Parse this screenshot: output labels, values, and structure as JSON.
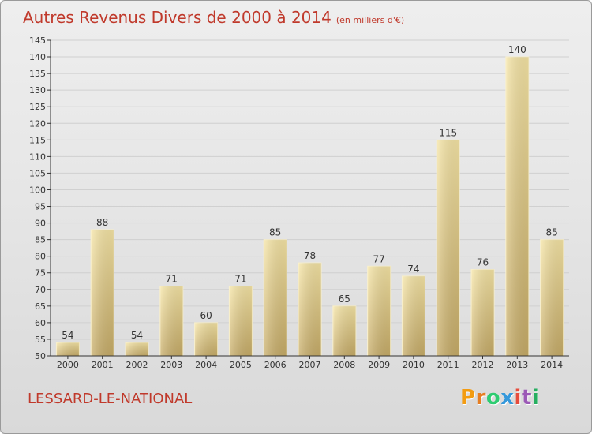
{
  "title": "Autres Revenus Divers de 2000 à 2014",
  "title_unit": "(en milliers d'€)",
  "location": "LESSARD-LE-NATIONAL",
  "logo": {
    "letters": [
      "P",
      "r",
      "o",
      "x",
      "i",
      "t",
      "i"
    ],
    "colors": [
      "#f39c12",
      "#e67e22",
      "#2ecc71",
      "#3498db",
      "#e74c3c",
      "#9b59b6",
      "#27ae60"
    ]
  },
  "colors": {
    "title": "#c0392b",
    "bar_light": "#f6e29f",
    "bar_dark": "#c9ad66",
    "axis": "#333333",
    "grid": "#d0d0d0"
  },
  "chart_data": {
    "type": "bar",
    "title": "Autres Revenus Divers de 2000 à 2014",
    "categories": [
      "2000",
      "2001",
      "2002",
      "2003",
      "2004",
      "2005",
      "2006",
      "2007",
      "2008",
      "2009",
      "2010",
      "2011",
      "2012",
      "2013",
      "2014"
    ],
    "values": [
      54,
      88,
      54,
      71,
      60,
      71,
      85,
      78,
      65,
      77,
      74,
      115,
      76,
      140,
      85
    ],
    "ylim": [
      50,
      145
    ],
    "yticks": [
      50,
      55,
      60,
      65,
      70,
      75,
      80,
      85,
      90,
      95,
      100,
      105,
      110,
      115,
      120,
      125,
      130,
      135,
      140,
      145
    ],
    "grid": true,
    "data_labels": true
  }
}
